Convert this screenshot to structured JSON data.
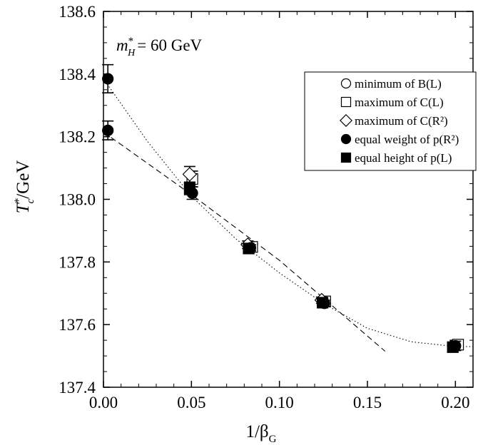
{
  "chart_data": {
    "type": "scatter",
    "annotation": "= 60 GeV",
    "annotation_symbol": {
      "base": "m",
      "sup": "*",
      "sub": "H"
    },
    "xlabel": {
      "base": "1/β",
      "sub": "G"
    },
    "ylabel": {
      "base": "T",
      "sup": "*",
      "sub": "c",
      "suffix": "/GeV"
    },
    "xlim": [
      0.0,
      0.21
    ],
    "ylim": [
      137.4,
      138.6
    ],
    "xticks": [
      "0.00",
      "0.05",
      "0.10",
      "0.15",
      "0.20"
    ],
    "yticks": [
      "137.4",
      "137.6",
      "137.8",
      "138.0",
      "138.2",
      "138.4",
      "138.6"
    ],
    "legend_position": "top-right",
    "series": [
      {
        "name": "minimum of B(L)",
        "marker": "open-circle",
        "points": [
          {
            "x": 0.0833,
            "y": 137.845,
            "err": 0.012
          },
          {
            "x": 0.125,
            "y": 137.672,
            "err": 0.01
          },
          {
            "x": 0.2,
            "y": 137.535,
            "err": 0.015
          }
        ]
      },
      {
        "name": "maximum of C(L)",
        "marker": "open-square",
        "points": [
          {
            "x": 0.0505,
            "y": 138.065,
            "err": 0.025
          },
          {
            "x": 0.0845,
            "y": 137.848,
            "err": 0.012
          },
          {
            "x": 0.126,
            "y": 137.674,
            "err": 0.01
          },
          {
            "x": 0.2015,
            "y": 137.536,
            "err": 0.015
          }
        ]
      },
      {
        "name": "maximum of C(R²)",
        "marker": "open-diamond",
        "points": [
          {
            "x": 0.049,
            "y": 138.08,
            "err": 0.025
          },
          {
            "x": 0.082,
            "y": 137.855,
            "err": 0.012
          },
          {
            "x": 0.124,
            "y": 137.678,
            "err": 0.01
          }
        ]
      },
      {
        "name": "equal weight of p(R²)",
        "marker": "filled-circle",
        "points": [
          {
            "x": 0.0025,
            "y": 138.385,
            "err": 0.045
          },
          {
            "x": 0.0025,
            "y": 138.22,
            "err": 0.03
          },
          {
            "x": 0.0505,
            "y": 138.02,
            "err": 0.02
          },
          {
            "x": 0.0835,
            "y": 137.845,
            "err": 0.01
          },
          {
            "x": 0.1255,
            "y": 137.668,
            "err": 0.01
          },
          {
            "x": 0.2,
            "y": 137.532,
            "err": 0.015
          }
        ]
      },
      {
        "name": "equal height of p(L)",
        "marker": "filled-square",
        "points": [
          {
            "x": 0.049,
            "y": 138.035,
            "err": 0.02
          },
          {
            "x": 0.0825,
            "y": 137.843,
            "err": 0.01
          },
          {
            "x": 0.1245,
            "y": 137.67,
            "err": 0.01
          },
          {
            "x": 0.1985,
            "y": 137.528,
            "err": 0.015
          }
        ]
      }
    ],
    "fit_lines": [
      {
        "style": "dotted",
        "points": [
          [
            0.0,
            138.385
          ],
          [
            0.025,
            138.185
          ],
          [
            0.05,
            138.01
          ],
          [
            0.075,
            137.875
          ],
          [
            0.1,
            137.765
          ],
          [
            0.125,
            137.668
          ],
          [
            0.15,
            137.588
          ],
          [
            0.175,
            137.545
          ],
          [
            0.2,
            137.53
          ],
          [
            0.21,
            137.53
          ]
        ]
      },
      {
        "style": "dashed",
        "points": [
          [
            0.0,
            138.215
          ],
          [
            0.05,
            138.015
          ],
          [
            0.1,
            137.805
          ],
          [
            0.16,
            137.515
          ]
        ]
      }
    ]
  }
}
